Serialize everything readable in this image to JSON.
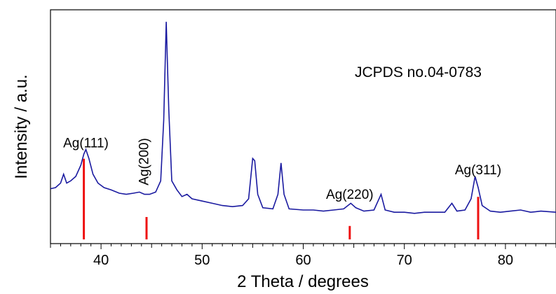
{
  "chart_data": {
    "type": "line",
    "xlabel": "2 Theta / degrees",
    "ylabel": "Intensity / a.u.",
    "xlim": [
      35,
      85
    ],
    "x_ticks": [
      40,
      50,
      60,
      70,
      80
    ],
    "y_ticks_shown": false,
    "grid": false,
    "note": "JCPDS no.04-0783",
    "series": [
      {
        "color": "#1a1aa0",
        "points": [
          [
            35.0,
            0.245
          ],
          [
            35.5,
            0.25
          ],
          [
            36.0,
            0.27
          ],
          [
            36.3,
            0.31
          ],
          [
            36.6,
            0.27
          ],
          [
            37.0,
            0.28
          ],
          [
            37.5,
            0.3
          ],
          [
            38.0,
            0.35
          ],
          [
            38.3,
            0.4
          ],
          [
            38.5,
            0.42
          ],
          [
            38.8,
            0.38
          ],
          [
            39.2,
            0.31
          ],
          [
            39.7,
            0.27
          ],
          [
            40.3,
            0.25
          ],
          [
            41.0,
            0.24
          ],
          [
            41.8,
            0.225
          ],
          [
            42.5,
            0.22
          ],
          [
            43.2,
            0.225
          ],
          [
            43.8,
            0.23
          ],
          [
            44.3,
            0.22
          ],
          [
            44.8,
            0.22
          ],
          [
            45.4,
            0.23
          ],
          [
            45.9,
            0.28
          ],
          [
            46.2,
            0.55
          ],
          [
            46.45,
            0.99
          ],
          [
            46.7,
            0.6
          ],
          [
            47.0,
            0.28
          ],
          [
            47.5,
            0.24
          ],
          [
            48.0,
            0.21
          ],
          [
            48.5,
            0.22
          ],
          [
            49.0,
            0.2
          ],
          [
            50.0,
            0.19
          ],
          [
            51.0,
            0.18
          ],
          [
            52.0,
            0.17
          ],
          [
            53.0,
            0.165
          ],
          [
            54.0,
            0.17
          ],
          [
            54.6,
            0.2
          ],
          [
            55.0,
            0.38
          ],
          [
            55.2,
            0.37
          ],
          [
            55.5,
            0.22
          ],
          [
            56.0,
            0.16
          ],
          [
            57.0,
            0.155
          ],
          [
            57.5,
            0.22
          ],
          [
            57.8,
            0.36
          ],
          [
            58.1,
            0.22
          ],
          [
            58.6,
            0.155
          ],
          [
            60.0,
            0.15
          ],
          [
            61.0,
            0.15
          ],
          [
            62.0,
            0.145
          ],
          [
            63.0,
            0.15
          ],
          [
            64.0,
            0.155
          ],
          [
            64.7,
            0.18
          ],
          [
            65.2,
            0.16
          ],
          [
            66.0,
            0.145
          ],
          [
            67.0,
            0.15
          ],
          [
            67.7,
            0.22
          ],
          [
            68.1,
            0.15
          ],
          [
            69.0,
            0.14
          ],
          [
            70.0,
            0.14
          ],
          [
            71.0,
            0.135
          ],
          [
            72.0,
            0.14
          ],
          [
            73.0,
            0.14
          ],
          [
            74.0,
            0.14
          ],
          [
            74.7,
            0.18
          ],
          [
            75.2,
            0.145
          ],
          [
            76.0,
            0.15
          ],
          [
            76.6,
            0.2
          ],
          [
            77.0,
            0.3
          ],
          [
            77.3,
            0.25
          ],
          [
            77.7,
            0.17
          ],
          [
            78.5,
            0.145
          ],
          [
            79.5,
            0.14
          ],
          [
            80.5,
            0.145
          ],
          [
            81.5,
            0.15
          ],
          [
            82.5,
            0.14
          ],
          [
            83.5,
            0.145
          ],
          [
            85.0,
            0.14
          ]
        ]
      }
    ],
    "reference_lines": {
      "color": "#ee1111",
      "lines": [
        {
          "x": 38.3,
          "height": 0.36
        },
        {
          "x": 44.5,
          "height": 0.1
        },
        {
          "x": 64.6,
          "height": 0.06
        },
        {
          "x": 77.3,
          "height": 0.19
        }
      ]
    },
    "annotations": [
      {
        "text": "Ag(111)",
        "x": 38.5,
        "y": 0.43,
        "rotated": false
      },
      {
        "text": "Ag(200)",
        "x": 44.2,
        "y": 0.26,
        "rotated": true
      },
      {
        "text": "Ag(220)",
        "x": 64.6,
        "y": 0.2,
        "rotated": false
      },
      {
        "text": "Ag(311)",
        "x": 77.3,
        "y": 0.31,
        "rotated": false
      }
    ]
  }
}
